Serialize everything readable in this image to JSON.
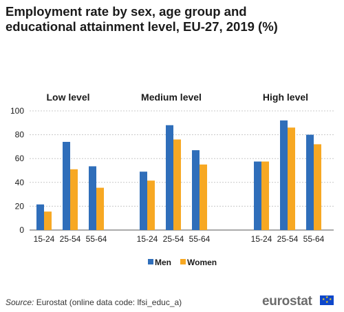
{
  "title": "Employment rate by sex, age group and educational attainment level, EU-27, 2019 (%)",
  "source_label": "Source:",
  "source_text": " Eurostat (online data code: lfsi_educ_a)",
  "logo_text": "eurostat",
  "colors": {
    "men": "#2f6eba",
    "women": "#f7a823",
    "grid": "#c8c8c8",
    "axis": "#555555"
  },
  "chart_data": {
    "type": "bar",
    "title": "Employment rate by sex, age group and educational attainment level, EU-27, 2019 (%)",
    "groups": [
      {
        "label": "Low level",
        "categories": [
          "15-24",
          "25-54",
          "55-64"
        ]
      },
      {
        "label": "Medium level",
        "categories": [
          "15-24",
          "25-54",
          "55-64"
        ]
      },
      {
        "label": "High level",
        "categories": [
          "15-24",
          "25-54",
          "55-64"
        ]
      }
    ],
    "series": [
      {
        "name": "Men",
        "color": "#2f6eba",
        "values": [
          [
            21.5,
            74,
            53.5
          ],
          [
            49,
            88,
            67
          ],
          [
            57.5,
            92,
            80
          ]
        ]
      },
      {
        "name": "Women",
        "color": "#f7a823",
        "values": [
          [
            15.5,
            51,
            35.5
          ],
          [
            41.5,
            76,
            55
          ],
          [
            57.5,
            86,
            72
          ]
        ]
      }
    ],
    "ylim": [
      0,
      100
    ],
    "yticks": [
      0,
      20,
      40,
      60,
      80,
      100
    ],
    "grid": true,
    "legend": "bottom-center"
  }
}
